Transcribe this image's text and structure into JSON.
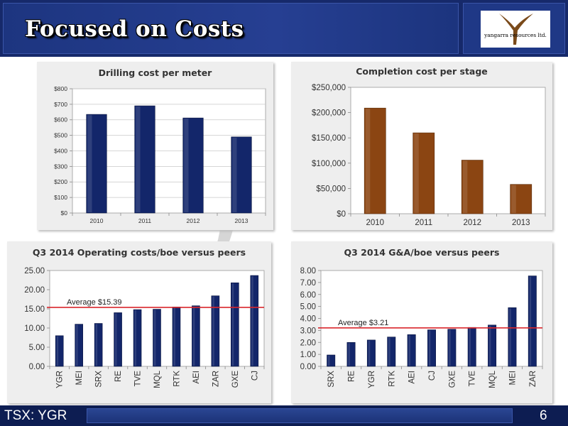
{
  "header": {
    "title": "Focused on Costs",
    "logo_text": "yangarra resources ltd."
  },
  "footer": {
    "ticker": "TSX: YGR",
    "page": "6"
  },
  "colors": {
    "navy": "#13266a",
    "brown": "#8b4512",
    "avg_line": "#d9262c",
    "panel": "#eeeeee"
  },
  "chart_data": [
    {
      "id": "drilling",
      "type": "bar",
      "title": "Drilling cost per meter",
      "categories": [
        "2010",
        "2011",
        "2012",
        "2013"
      ],
      "values": [
        635,
        690,
        612,
        490
      ],
      "ylim": [
        0,
        800
      ],
      "yticks": [
        "$0",
        "$100",
        "$200",
        "$300",
        "$400",
        "$500",
        "$600",
        "$700",
        "$800"
      ],
      "grid": true,
      "color": "#13266a"
    },
    {
      "id": "completion",
      "type": "bar",
      "title": "Completion cost per stage",
      "categories": [
        "2010",
        "2011",
        "2012",
        "2013"
      ],
      "values": [
        209000,
        160000,
        106000,
        58000
      ],
      "ylim": [
        0,
        250000
      ],
      "yticks": [
        "$0",
        "$50,000",
        "$100,000",
        "$150,000",
        "$200,000",
        "$250,000"
      ],
      "grid": false,
      "color": "#8b4512"
    },
    {
      "id": "opcost",
      "type": "bar",
      "title": "Q3 2014 Operating costs/boe versus peers",
      "categories": [
        "YGR",
        "MEI",
        "SRX",
        "RE",
        "TVE",
        "MQL",
        "RTK",
        "AEI",
        "ZAR",
        "GXE",
        "CJ"
      ],
      "values": [
        8.0,
        11.0,
        11.2,
        14.0,
        14.8,
        14.9,
        15.5,
        15.8,
        18.4,
        21.8,
        23.7
      ],
      "ylim": [
        0,
        25
      ],
      "yticks": [
        "0.00",
        "5.00",
        "10.00",
        "15.00",
        "20.00",
        "25.00"
      ],
      "average": {
        "value": 15.39,
        "label": "Average $15.39"
      },
      "grid": false,
      "color": "#13266a"
    },
    {
      "id": "ga",
      "type": "bar",
      "title": "Q3 2014 G&A/boe versus peers",
      "categories": [
        "SRX",
        "RE",
        "YGR",
        "RTK",
        "AEI",
        "CJ",
        "GXE",
        "TVE",
        "MQL",
        "MEI",
        "ZAR"
      ],
      "values": [
        0.95,
        2.0,
        2.2,
        2.45,
        2.65,
        3.05,
        3.1,
        3.25,
        3.45,
        4.9,
        7.55
      ],
      "ylim": [
        0,
        8
      ],
      "yticks": [
        "0.00",
        "1.00",
        "2.00",
        "3.00",
        "4.00",
        "5.00",
        "6.00",
        "7.00",
        "8.00"
      ],
      "average": {
        "value": 3.21,
        "label": "Average $3.21"
      },
      "grid": false,
      "color": "#13266a"
    }
  ]
}
